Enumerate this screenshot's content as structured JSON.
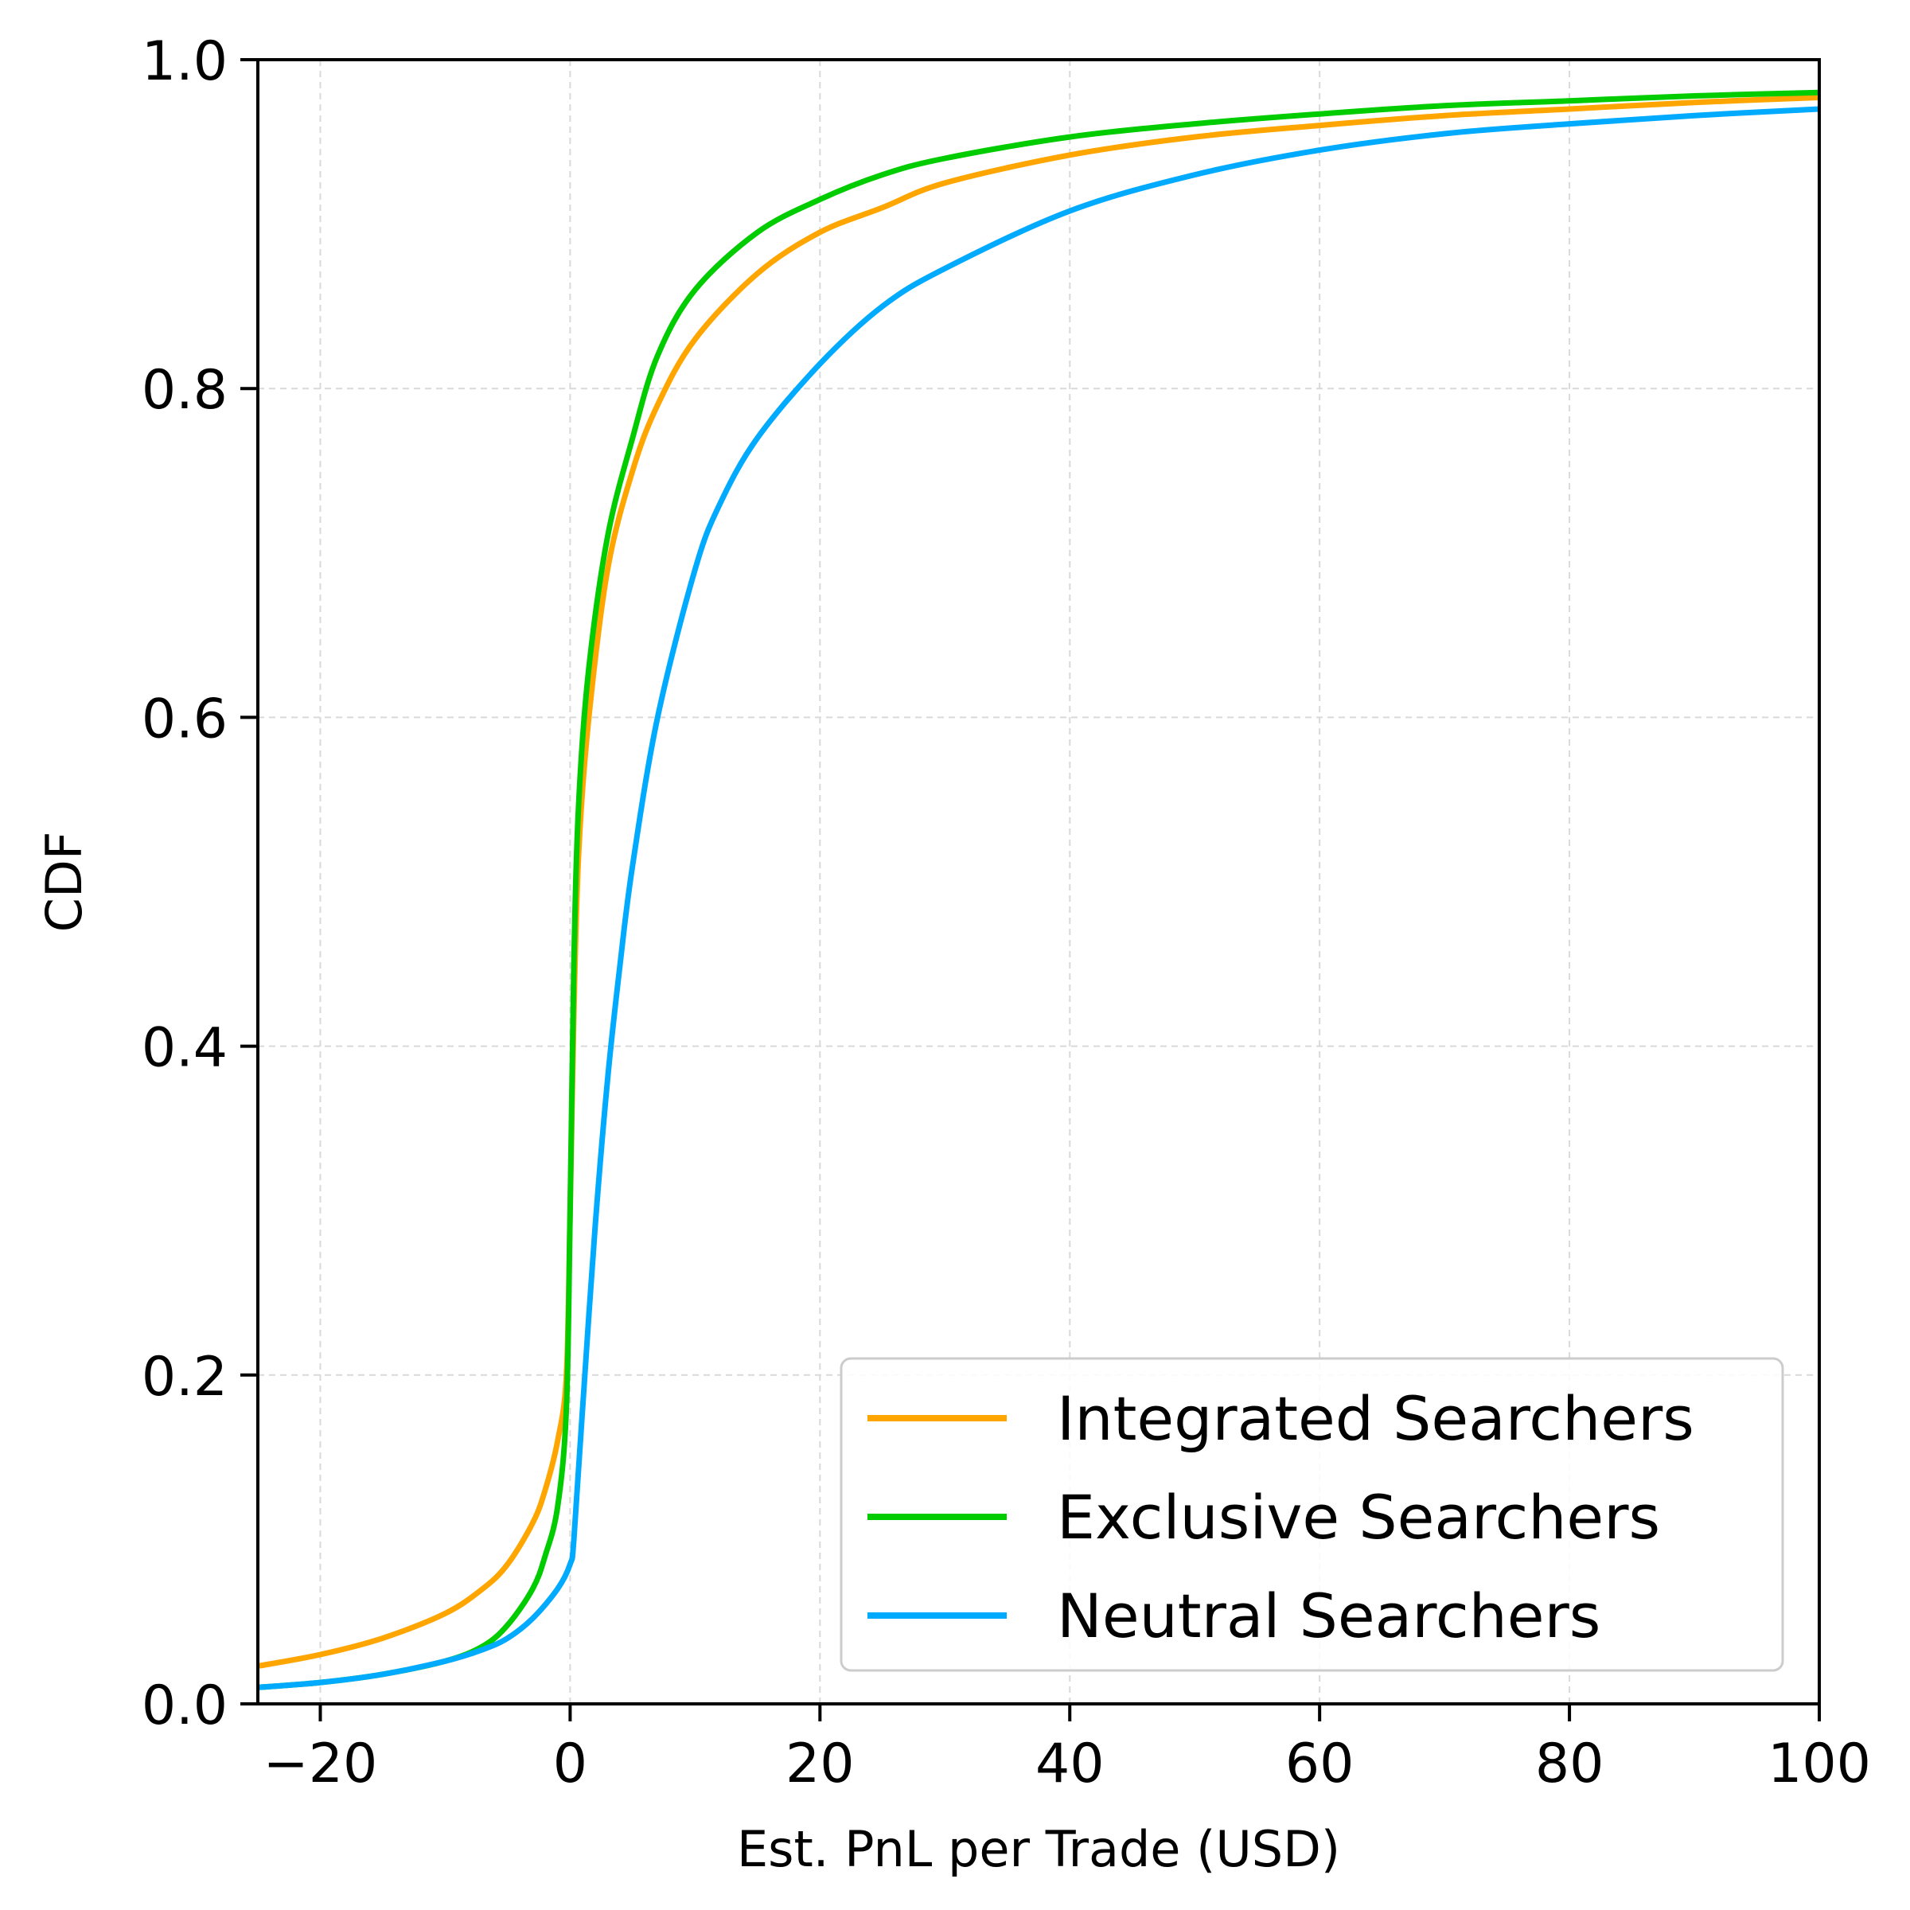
{
  "chart_data": {
    "type": "line",
    "xlabel": "Est. PnL per Trade (USD)",
    "ylabel": "CDF",
    "xlim": [
      -25,
      100
    ],
    "ylim": [
      0,
      1
    ],
    "xticks": [
      -20,
      0,
      20,
      40,
      60,
      80,
      100
    ],
    "xtick_labels": [
      "−20",
      "0",
      "20",
      "40",
      "60",
      "80",
      "100"
    ],
    "yticks": [
      0,
      0.2,
      0.4,
      0.6,
      0.8,
      1.0
    ],
    "ytick_labels": [
      "0.0",
      "0.2",
      "0.4",
      "0.6",
      "0.8",
      "1.0"
    ],
    "grid": true,
    "legend_position": "lower-right",
    "series": [
      {
        "name": "Integrated Searchers",
        "color": "#FFA500",
        "points": [
          [
            -25,
            0.023
          ],
          [
            -20,
            0.03
          ],
          [
            -15,
            0.04
          ],
          [
            -10,
            0.055
          ],
          [
            -7,
            0.07
          ],
          [
            -5,
            0.085
          ],
          [
            -3,
            0.11
          ],
          [
            -2,
            0.13
          ],
          [
            -1,
            0.16
          ],
          [
            -0.3,
            0.2
          ],
          [
            0,
            0.3
          ],
          [
            0.3,
            0.42
          ],
          [
            0.7,
            0.52
          ],
          [
            1.5,
            0.6
          ],
          [
            3,
            0.69
          ],
          [
            5,
            0.75
          ],
          [
            7,
            0.79
          ],
          [
            10,
            0.83
          ],
          [
            15,
            0.87
          ],
          [
            20,
            0.895
          ],
          [
            25,
            0.91
          ],
          [
            30,
            0.925
          ],
          [
            40,
            0.942
          ],
          [
            50,
            0.953
          ],
          [
            60,
            0.96
          ],
          [
            70,
            0.966
          ],
          [
            80,
            0.97
          ],
          [
            90,
            0.974
          ],
          [
            100,
            0.977
          ]
        ]
      },
      {
        "name": "Exclusive Searchers",
        "color": "#00CC00",
        "points": [
          [
            -25,
            0.01
          ],
          [
            -20,
            0.013
          ],
          [
            -15,
            0.018
          ],
          [
            -10,
            0.026
          ],
          [
            -7,
            0.035
          ],
          [
            -5,
            0.048
          ],
          [
            -3,
            0.07
          ],
          [
            -2,
            0.09
          ],
          [
            -1,
            0.12
          ],
          [
            -0.3,
            0.18
          ],
          [
            0,
            0.3
          ],
          [
            0.3,
            0.45
          ],
          [
            0.7,
            0.55
          ],
          [
            1.5,
            0.63
          ],
          [
            3,
            0.71
          ],
          [
            5,
            0.77
          ],
          [
            7,
            0.82
          ],
          [
            10,
            0.86
          ],
          [
            15,
            0.895
          ],
          [
            20,
            0.915
          ],
          [
            25,
            0.93
          ],
          [
            30,
            0.94
          ],
          [
            40,
            0.953
          ],
          [
            50,
            0.961
          ],
          [
            60,
            0.967
          ],
          [
            70,
            0.972
          ],
          [
            80,
            0.975
          ],
          [
            90,
            0.978
          ],
          [
            100,
            0.98
          ]
        ]
      },
      {
        "name": "Neutral Searchers",
        "color": "#00AAFF",
        "points": [
          [
            -25,
            0.01
          ],
          [
            -20,
            0.013
          ],
          [
            -15,
            0.018
          ],
          [
            -10,
            0.026
          ],
          [
            -7,
            0.033
          ],
          [
            -5,
            0.04
          ],
          [
            -3,
            0.052
          ],
          [
            -1,
            0.07
          ],
          [
            0,
            0.085
          ],
          [
            0.3,
            0.1
          ],
          [
            1,
            0.18
          ],
          [
            2,
            0.29
          ],
          [
            3,
            0.38
          ],
          [
            4,
            0.45
          ],
          [
            5,
            0.51
          ],
          [
            7,
            0.6
          ],
          [
            10,
            0.69
          ],
          [
            12,
            0.73
          ],
          [
            15,
            0.77
          ],
          [
            20,
            0.815
          ],
          [
            25,
            0.85
          ],
          [
            30,
            0.873
          ],
          [
            40,
            0.908
          ],
          [
            50,
            0.93
          ],
          [
            60,
            0.945
          ],
          [
            70,
            0.955
          ],
          [
            80,
            0.961
          ],
          [
            90,
            0.966
          ],
          [
            100,
            0.97
          ]
        ]
      }
    ]
  }
}
